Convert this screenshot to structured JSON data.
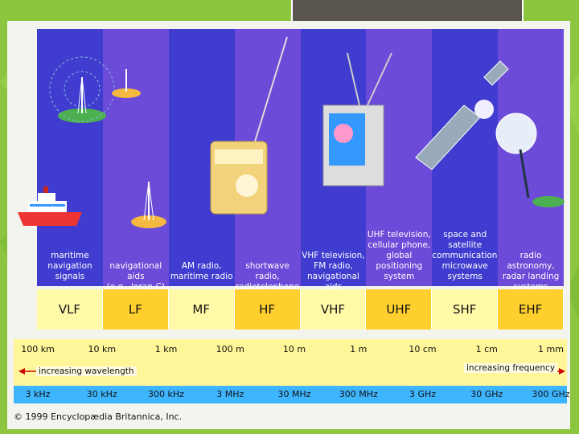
{
  "bands": [
    {
      "abbr": "VLF",
      "label": [
        "maritime",
        "navigation",
        "signals"
      ],
      "bg": "#3f3ccf",
      "abbr_bg": "#fffaa8"
    },
    {
      "abbr": "LF",
      "label": [
        "navigational aids",
        "(e.g., loran-C)"
      ],
      "bg": "#6b4bd8",
      "abbr_bg": "#ffcf2e"
    },
    {
      "abbr": "MF",
      "label": [
        "AM radio,",
        "maritime radio"
      ],
      "bg": "#3f3ccf",
      "abbr_bg": "#fffaa8"
    },
    {
      "abbr": "HF",
      "label": [
        "shortwave radio,",
        "radiotelephone"
      ],
      "bg": "#6b4bd8",
      "abbr_bg": "#ffcf2e"
    },
    {
      "abbr": "VHF",
      "label": [
        "VHF television,",
        "FM radio,",
        "navigational aids"
      ],
      "bg": "#3f3ccf",
      "abbr_bg": "#fffaa8"
    },
    {
      "abbr": "UHF",
      "label": [
        "UHF television,",
        "cellular phone,",
        "global",
        "positioning",
        "system"
      ],
      "bg": "#6b4bd8",
      "abbr_bg": "#ffcf2e"
    },
    {
      "abbr": "SHF",
      "label": [
        "space and",
        "satellite",
        "communications,",
        "microwave",
        "systems"
      ],
      "bg": "#3f3ccf",
      "abbr_bg": "#fffaa8"
    },
    {
      "abbr": "EHF",
      "label": [
        "radio astronomy,",
        "radar landing",
        "systems"
      ],
      "bg": "#6b4bd8",
      "abbr_bg": "#ffcf2e"
    }
  ],
  "wavelengths": [
    "100 km",
    "10 km",
    "1 km",
    "100 m",
    "10 m",
    "1 m",
    "10 cm",
    "1 cm",
    "1 mm"
  ],
  "frequencies": [
    "3 kHz",
    "30 kHz",
    "300 kHz",
    "3 MHz",
    "30 MHz",
    "300 MHz",
    "3 GHz",
    "30 GHz",
    "300 GHz"
  ],
  "increasing_wavelength": "increasing wavelength",
  "increasing_frequency": "increasing frequency",
  "copyright": "© 1999 Encyclopædia Britannica, Inc.",
  "colors": {
    "slide_green": "#8cc63f",
    "band_dark": "#3f3ccf",
    "band_light": "#6b4bd8",
    "scale_yellow": "#fff69a",
    "scale_blue": "#3eb5ff",
    "orange": "#ffcf2e"
  }
}
